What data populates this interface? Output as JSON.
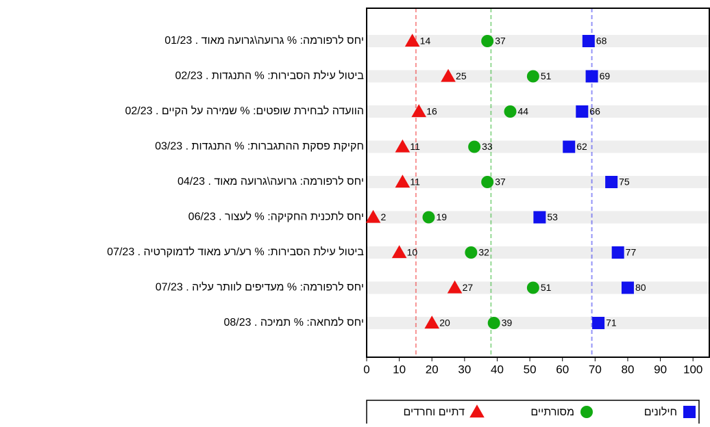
{
  "chart_data": {
    "type": "dot",
    "categories": [
      "יחס לרפורמה: % גרועה\\גרועה מאוד . 01/23",
      "ביטול עילת הסבירות: % התנגדות . 02/23",
      "הוועדה לבחירת שופטים: % שמירה על הקיים . 02/23",
      "חקיקת פסקת ההתגברות: % התנגדות . 03/23",
      "יחס לרפורמה: גרועה\\גרועה מאוד . 04/23",
      "יחס לתכנית החקיקה: % לעצור . 06/23",
      "ביטול עילת הסבירות: % רע/רע מאוד לדמוקרטיה . 07/23",
      "יחס לרפורמה: % מעדיפים לוותר עליה . 07/23",
      "יחס למחאה: % תמיכה . 08/23"
    ],
    "series": [
      {
        "name": "דתיים וחרדים",
        "color": "#ee1111",
        "marker": "triangle",
        "reference": 15.1,
        "values": [
          14,
          25,
          16,
          11,
          11,
          2,
          10,
          27,
          20
        ]
      },
      {
        "name": "מסורתיים",
        "color": "#11aa11",
        "marker": "circle",
        "reference": 38.1,
        "values": [
          37,
          51,
          44,
          33,
          37,
          19,
          32,
          51,
          39
        ]
      },
      {
        "name": "חילונים",
        "color": "#1111ee",
        "marker": "square",
        "reference": 69,
        "values": [
          68,
          69,
          66,
          62,
          75,
          53,
          77,
          80,
          71
        ]
      }
    ],
    "xlim": [
      0,
      105
    ],
    "xticks": [
      0,
      10,
      20,
      30,
      40,
      50,
      60,
      70,
      80,
      90,
      100
    ]
  }
}
